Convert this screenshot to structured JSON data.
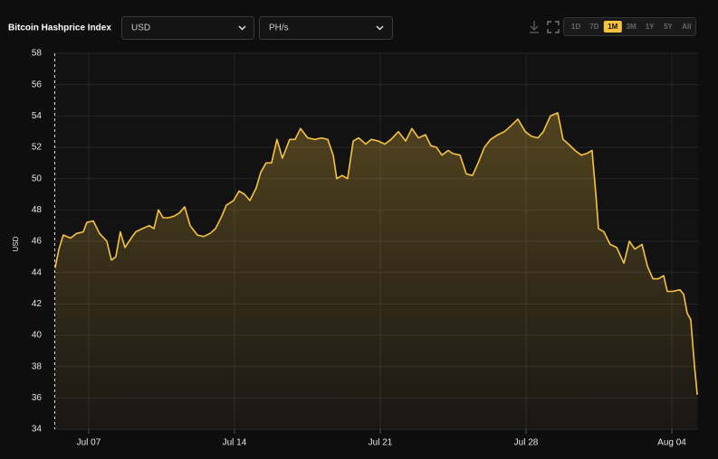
{
  "header": {
    "title": "Bitcoin Hashprice Index",
    "currency": "USD",
    "unit": "PH/s",
    "ranges": [
      "1D",
      "7D",
      "1M",
      "3M",
      "1Y",
      "5Y",
      "All"
    ],
    "active_range": 2
  },
  "chart_data": {
    "type": "area",
    "ylabel": "USD",
    "color": "#f5c242",
    "grid": true,
    "x": [
      5.39,
      5.57,
      5.78,
      6.13,
      6.43,
      6.74,
      6.91,
      7.22,
      7.52,
      7.87,
      8.09,
      8.3,
      8.52,
      8.74,
      9.04,
      9.26,
      9.57,
      9.91,
      10.13,
      10.35,
      10.57,
      10.83,
      11.09,
      11.35,
      11.61,
      11.87,
      12.22,
      12.52,
      12.83,
      13.09,
      13.39,
      13.61,
      13.96,
      14.22,
      14.48,
      14.74,
      15.04,
      15.26,
      15.52,
      15.78,
      16.04,
      16.3,
      16.65,
      16.91,
      17.17,
      17.52,
      17.87,
      18.17,
      18.48,
      18.74,
      18.91,
      19.17,
      19.43,
      19.7,
      19.96,
      20.3,
      20.57,
      20.91,
      21.22,
      21.52,
      21.87,
      22.22,
      22.52,
      22.83,
      23.17,
      23.43,
      23.7,
      23.96,
      24.26,
      24.48,
      24.83,
      25.13,
      25.43,
      25.7,
      26.0,
      26.3,
      26.65,
      26.96,
      27.3,
      27.61,
      27.96,
      28.26,
      28.57,
      28.83,
      29.17,
      29.52,
      29.78,
      30.04,
      30.35,
      30.65,
      30.91,
      31.17,
      31.35,
      31.48,
      31.74,
      32.04,
      32.35,
      32.7,
      32.96,
      33.22,
      33.57,
      33.83,
      34.09,
      34.35,
      34.61,
      34.78,
      35.04,
      35.39,
      35.57,
      35.74,
      35.91,
      36.09,
      36.22
    ],
    "values": [
      44.3,
      45.5,
      46.4,
      46.2,
      46.5,
      46.6,
      47.2,
      47.3,
      46.5,
      46.0,
      44.8,
      45.0,
      46.6,
      45.6,
      46.2,
      46.6,
      46.8,
      47.0,
      46.8,
      48.0,
      47.5,
      47.5,
      47.6,
      47.8,
      48.2,
      47.0,
      46.4,
      46.3,
      46.5,
      46.8,
      47.6,
      48.3,
      48.6,
      49.2,
      49.0,
      48.6,
      49.4,
      50.4,
      51.0,
      51.0,
      52.5,
      51.3,
      52.5,
      52.5,
      53.2,
      52.6,
      52.5,
      52.6,
      52.5,
      51.5,
      50.0,
      50.2,
      50.0,
      52.4,
      52.6,
      52.2,
      52.5,
      52.4,
      52.2,
      52.5,
      53.0,
      52.4,
      53.2,
      52.6,
      52.8,
      52.1,
      52.0,
      51.5,
      51.8,
      51.6,
      51.5,
      50.3,
      50.2,
      51.0,
      52.0,
      52.5,
      52.8,
      53.0,
      53.4,
      53.8,
      53.0,
      52.7,
      52.6,
      53.0,
      54.0,
      54.2,
      52.5,
      52.2,
      51.8,
      51.5,
      51.6,
      51.8,
      49.0,
      46.8,
      46.6,
      45.8,
      45.6,
      44.6,
      46.0,
      45.5,
      45.8,
      44.4,
      43.6,
      43.6,
      43.8,
      42.8,
      42.8,
      42.9,
      42.6,
      41.4,
      41.0,
      38.0,
      36.2
    ],
    "xlim": [
      5.35,
      36.26
    ],
    "xticks": [
      {
        "value": 7,
        "label": "Jul 07"
      },
      {
        "value": 14,
        "label": "Jul 14"
      },
      {
        "value": 21,
        "label": "Jul 21"
      },
      {
        "value": 28,
        "label": "Jul 28"
      },
      {
        "value": 35,
        "label": "Aug 04"
      }
    ],
    "ylim": [
      34,
      58
    ],
    "yticks": [
      34,
      36,
      38,
      40,
      42,
      44,
      46,
      48,
      50,
      52,
      54,
      56,
      58
    ]
  }
}
